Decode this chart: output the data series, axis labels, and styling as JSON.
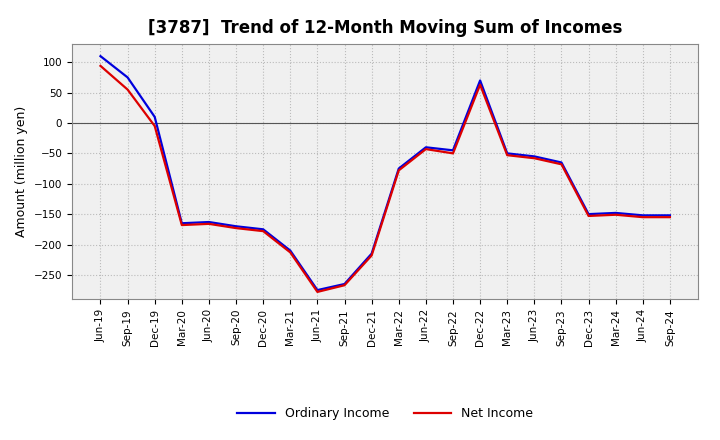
{
  "title": "[3787]  Trend of 12-Month Moving Sum of Incomes",
  "ylabel": "Amount (million yen)",
  "ylim": [
    -290,
    130
  ],
  "yticks": [
    100,
    50,
    0,
    -50,
    -100,
    -150,
    -200,
    -250
  ],
  "background_color": "#ffffff",
  "plot_bg_color": "#f0f0f0",
  "grid_color": "#bbbbbb",
  "x_labels": [
    "Jun-19",
    "Sep-19",
    "Dec-19",
    "Mar-20",
    "Jun-20",
    "Sep-20",
    "Dec-20",
    "Mar-21",
    "Jun-21",
    "Sep-21",
    "Dec-21",
    "Mar-22",
    "Jun-22",
    "Sep-22",
    "Dec-22",
    "Mar-23",
    "Jun-23",
    "Sep-23",
    "Dec-23",
    "Mar-24",
    "Jun-24",
    "Sep-24"
  ],
  "ordinary_income": [
    110,
    75,
    10,
    -165,
    -163,
    -170,
    -175,
    -210,
    -275,
    -265,
    -215,
    -75,
    -40,
    -45,
    70,
    -50,
    -55,
    -65,
    -150,
    -148,
    -152,
    -152
  ],
  "net_income": [
    94,
    55,
    -5,
    -168,
    -166,
    -173,
    -178,
    -213,
    -278,
    -267,
    -218,
    -78,
    -43,
    -50,
    63,
    -53,
    -58,
    -68,
    -153,
    -151,
    -155,
    -155
  ],
  "ordinary_color": "#0000dd",
  "net_color": "#dd0000",
  "line_width": 1.6,
  "title_fontsize": 12,
  "legend_fontsize": 9,
  "tick_fontsize": 7.5,
  "ylabel_fontsize": 9
}
